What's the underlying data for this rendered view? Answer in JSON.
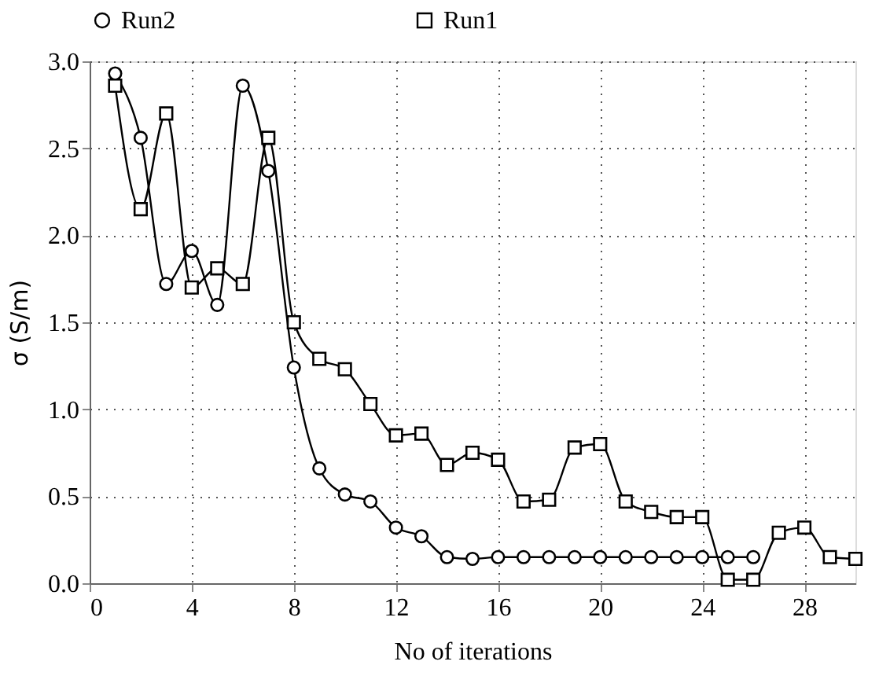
{
  "chart_data": {
    "type": "line",
    "xlabel": "No of iterations",
    "ylabel": "σ (S/m)",
    "xlim": [
      0,
      30
    ],
    "xticks": [
      0,
      4,
      8,
      12,
      16,
      20,
      24,
      28
    ],
    "ylim": [
      0,
      3
    ],
    "yticks": [
      {
        "value": 0,
        "label": "0.0"
      },
      {
        "value": 0.5,
        "label": "0.5"
      },
      {
        "value": 1,
        "label": "1.0"
      },
      {
        "value": 1.5,
        "label": "1.5"
      },
      {
        "value": 2,
        "label": "2.0"
      },
      {
        "value": 2.5,
        "label": "2.5"
      },
      {
        "value": 3,
        "label": "3.0"
      }
    ],
    "grid": true,
    "legend": "top",
    "line_style": "solid",
    "series": [
      {
        "name": "Run2",
        "color": "#000000",
        "marker": "circle",
        "x": [
          1,
          2,
          3,
          4,
          5,
          6,
          7,
          8,
          9,
          10,
          11,
          12,
          13,
          14,
          15,
          16,
          17,
          18,
          19,
          20,
          21,
          22,
          23,
          24,
          25,
          26
        ],
        "values": [
          2.93,
          2.56,
          1.72,
          1.91,
          1.6,
          2.86,
          2.37,
          1.24,
          0.66,
          0.51,
          0.47,
          0.32,
          0.27,
          0.15,
          0.14,
          0.15,
          0.15,
          0.15,
          0.15,
          0.15,
          0.15,
          0.15,
          0.15,
          0.15,
          0.15,
          0.15
        ]
      },
      {
        "name": "Run1",
        "color": "#000000",
        "marker": "square",
        "x": [
          1,
          2,
          3,
          4,
          5,
          6,
          7,
          8,
          9,
          10,
          11,
          12,
          13,
          14,
          15,
          16,
          17,
          18,
          19,
          20,
          21,
          22,
          23,
          24,
          25,
          26,
          27,
          28,
          29,
          30
        ],
        "values": [
          2.86,
          2.15,
          2.7,
          1.7,
          1.81,
          1.72,
          2.56,
          1.5,
          1.29,
          1.23,
          1.03,
          0.85,
          0.86,
          0.68,
          0.75,
          0.71,
          0.47,
          0.48,
          0.78,
          0.8,
          0.47,
          0.41,
          0.38,
          0.38,
          0.02,
          0.02,
          0.29,
          0.32,
          0.15,
          0.14
        ]
      }
    ]
  }
}
